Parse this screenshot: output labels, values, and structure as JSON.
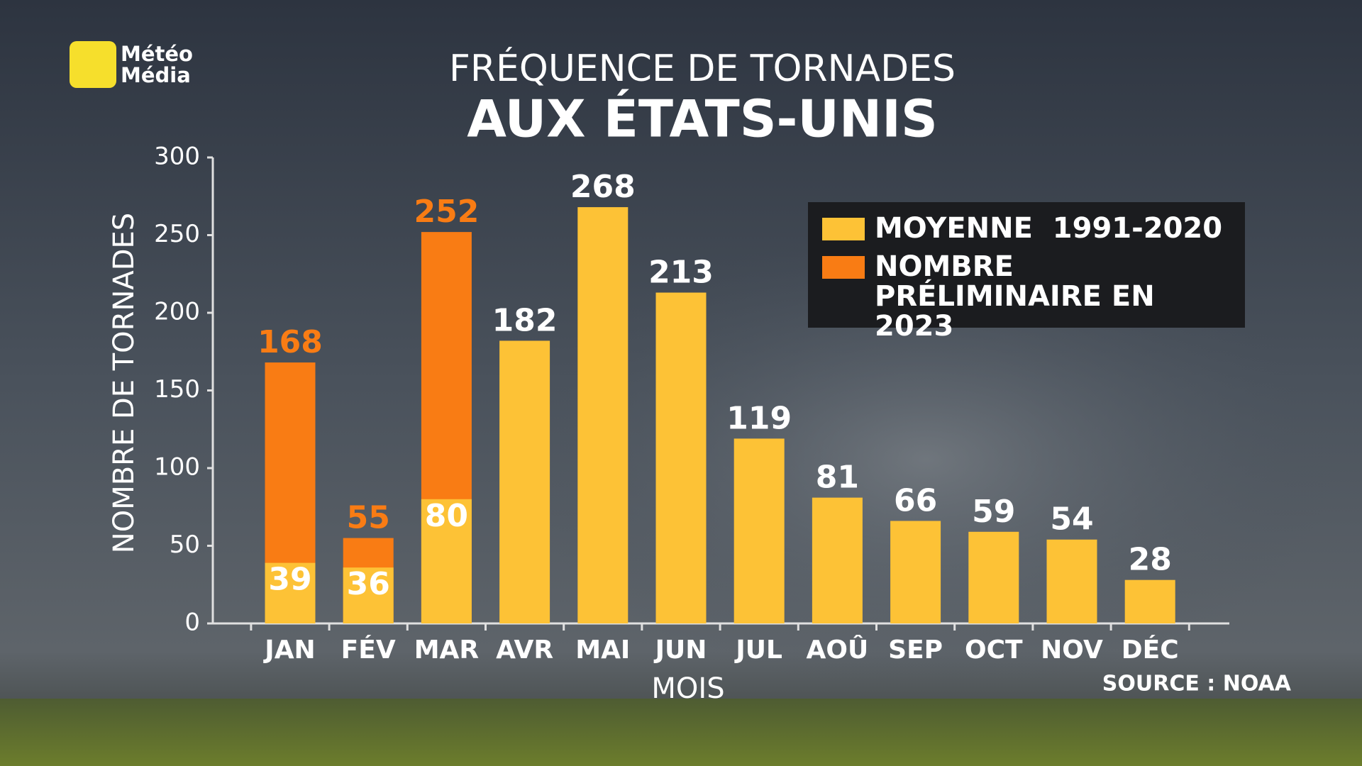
{
  "logo": "Météo Média",
  "chart_data": {
    "type": "bar",
    "title": "FRÉQUENCE DE TORNADES",
    "subtitle": "AUX ÉTATS-UNIS",
    "x_label": "MOIS",
    "y_label": "NOMBRE DE TORNADES",
    "source": "SOURCE : NOAA",
    "categories": [
      "JAN",
      "FÉV",
      "MAR",
      "AVR",
      "MAI",
      "JUN",
      "JUL",
      "AOÛ",
      "SEP",
      "OCT",
      "NOV",
      "DÉC"
    ],
    "series": [
      {
        "name": "NOMBRE PRÉLIMINAIRE EN 2023",
        "color": "#f97c14",
        "label_color": "#f97c14",
        "values": [
          168,
          55,
          252,
          null,
          null,
          null,
          null,
          null,
          null,
          null,
          null,
          null
        ]
      },
      {
        "name": "MOYENNE  1991-2020",
        "color": "#fdc236",
        "label_color": "#ffffff",
        "values": [
          39,
          36,
          80,
          182,
          268,
          213,
          119,
          81,
          66,
          59,
          54,
          28
        ]
      }
    ],
    "legend_order": [
      1,
      0
    ],
    "ylim": [
      0,
      300
    ],
    "yticks": [
      0,
      50,
      100,
      150,
      200,
      250,
      300
    ]
  }
}
